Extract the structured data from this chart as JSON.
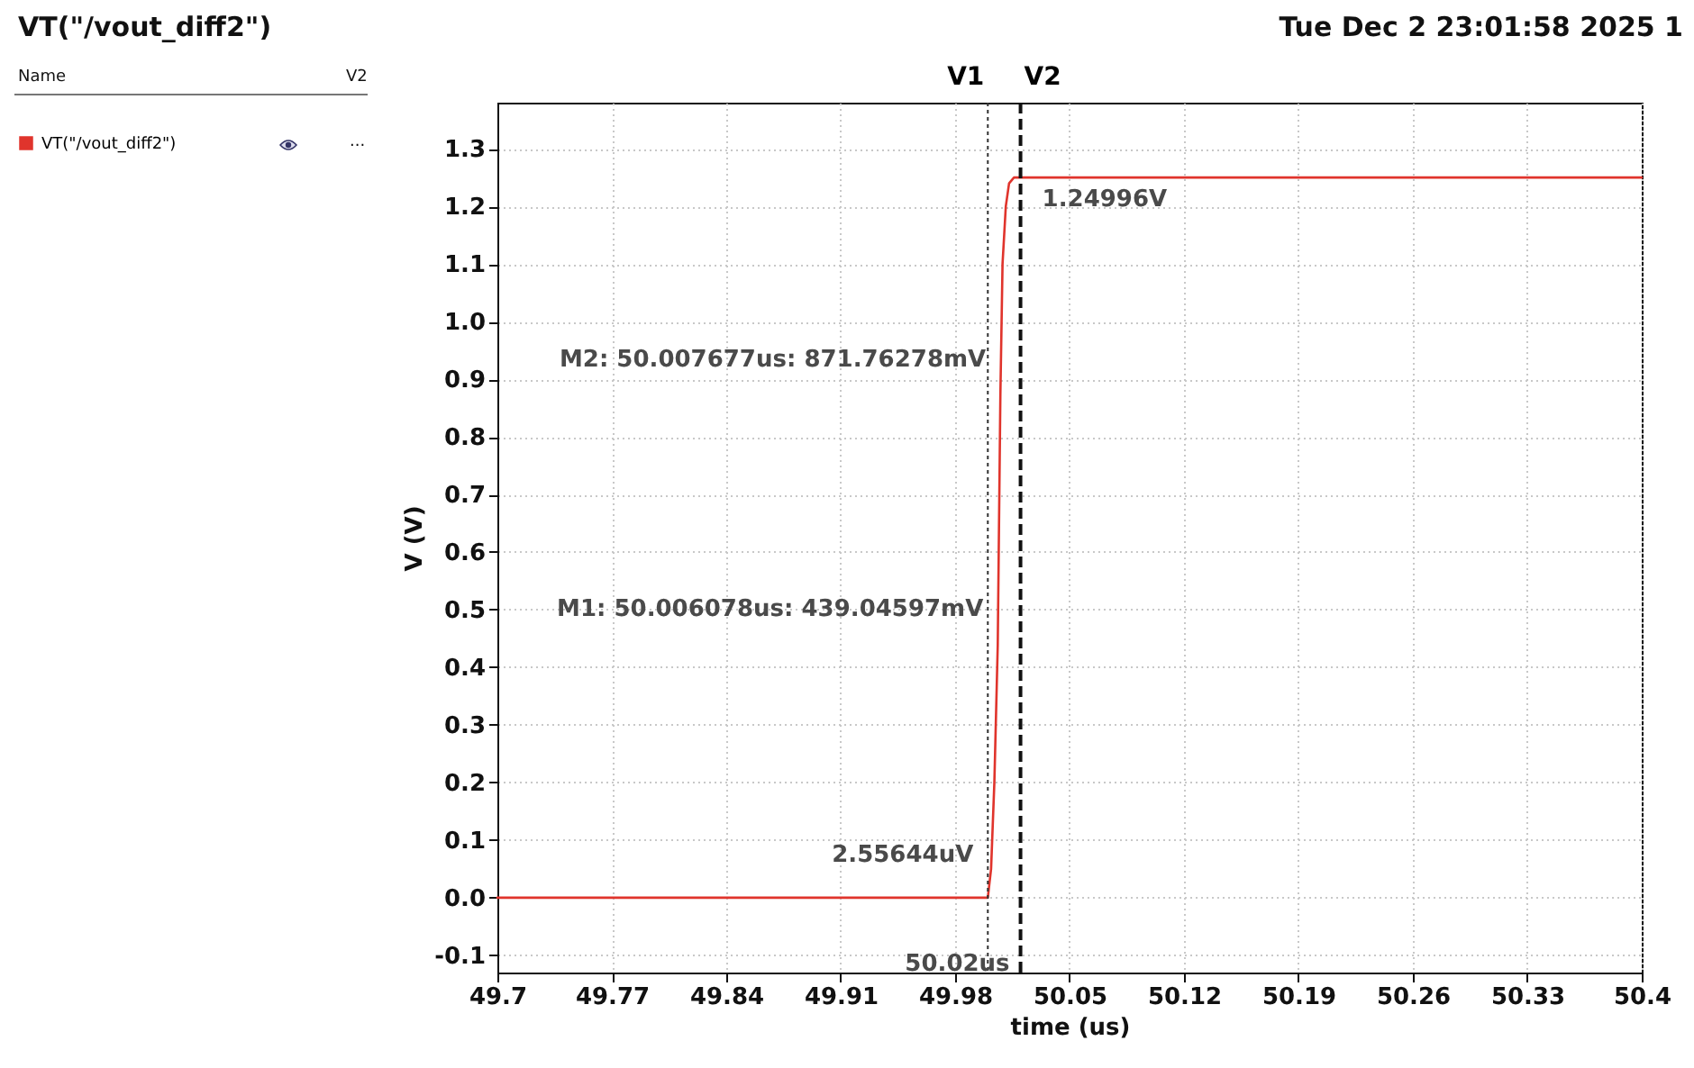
{
  "chart_data": {
    "type": "line",
    "title": "VT(\"/vout_diff2\")",
    "xlabel": "time (us)",
    "ylabel": "V (V)",
    "x": [
      49.7,
      50.0,
      50.002,
      50.004,
      50.006078,
      50.007677,
      50.009,
      50.011,
      50.013,
      50.016,
      50.02,
      50.4
    ],
    "series": [
      {
        "name": "VT(\"/vout_diff2\")",
        "color": "#e0342c",
        "values": [
          0,
          0,
          0.05,
          0.2,
          0.439,
          0.872,
          1.1,
          1.2,
          1.24,
          1.25,
          1.25,
          1.25
        ]
      }
    ],
    "xlim": [
      49.7,
      50.4
    ],
    "xticks": [
      49.7,
      49.77,
      49.84,
      49.91,
      49.98,
      50.05,
      50.12,
      50.19,
      50.26,
      50.33,
      50.4
    ],
    "ylim": [
      -0.13,
      1.38
    ],
    "yticks": [
      -0.1,
      {
        "value": 0,
        "label": "0.0"
      },
      0.1,
      0.2,
      0.3,
      0.4,
      0.5,
      0.6,
      0.7,
      0.8,
      0.9,
      {
        "value": 1,
        "label": "1.0"
      },
      1.1,
      1.2,
      1.3
    ],
    "ref_lines": [
      {
        "axis": "x",
        "value": 50.0,
        "label": "V1",
        "line_style": "dotted",
        "color": "#333333"
      },
      {
        "axis": "x",
        "value": 50.02,
        "label": "V2",
        "line_style": "dashed",
        "color": "#111111"
      }
    ],
    "annotations": [
      "Tue Dec 2 23:01:58 2025  1",
      "Name",
      "V2",
      "...",
      {
        "text": "M2: 50.007677us: 871.76278mV",
        "x": 50.007677,
        "y": 0.87176278
      },
      {
        "text": "M1: 50.006078us: 439.04597mV",
        "x": 50.006078,
        "y": 0.43904597
      },
      {
        "text": "1.24996V",
        "x": 50.02,
        "y": 1.24996
      },
      {
        "text": "2.55644uV",
        "x": 50.0,
        "y": 2.55644e-06
      },
      {
        "text": "50.02us",
        "x": 50.02
      }
    ],
    "grid": true,
    "legend": "left",
    "line_style": "solid",
    "marker": "none"
  }
}
